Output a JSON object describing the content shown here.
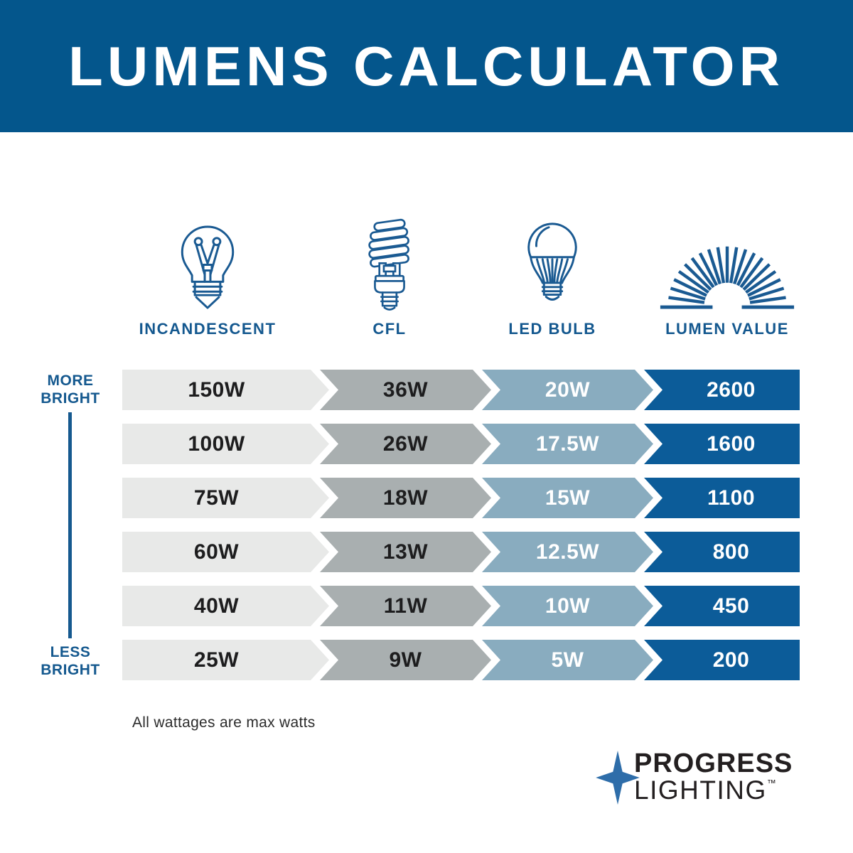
{
  "header": {
    "title": "LUMENS CALCULATOR"
  },
  "columns": [
    {
      "label": "INCANDESCENT",
      "icon": "incandescent-bulb-icon"
    },
    {
      "label": "CFL",
      "icon": "cfl-bulb-icon"
    },
    {
      "label": "LED BULB",
      "icon": "led-bulb-icon"
    },
    {
      "label": "LUMEN VALUE",
      "icon": "sunburst-icon"
    }
  ],
  "brightness_scale": {
    "top": "MORE BRIGHT",
    "bottom": "LESS BRIGHT"
  },
  "rows": [
    {
      "incandescent": "150W",
      "cfl": "36W",
      "led": "20W",
      "lumens": "2600"
    },
    {
      "incandescent": "100W",
      "cfl": "26W",
      "led": "17.5W",
      "lumens": "1600"
    },
    {
      "incandescent": "75W",
      "cfl": "18W",
      "led": "15W",
      "lumens": "1100"
    },
    {
      "incandescent": "60W",
      "cfl": "13W",
      "led": "12.5W",
      "lumens": "800"
    },
    {
      "incandescent": "40W",
      "cfl": "11W",
      "led": "10W",
      "lumens": "450"
    },
    {
      "incandescent": "25W",
      "cfl": "9W",
      "led": "5W",
      "lumens": "200"
    }
  ],
  "footnote": "All wattages are max watts",
  "brand": {
    "line1": "PROGRESS",
    "line2": "LIGHTING",
    "trademark": "™"
  },
  "colors": {
    "banner_blue": "#04568C",
    "lumen_value_blue": "#0C5C99",
    "led_blue": "#89ACBF",
    "cfl_gray": "#A9AFB0",
    "incandescent_gray": "#E8E9E8",
    "label_blue": "#15598F",
    "icon_stroke_blue": "#1A5A92",
    "logo_star_blue": "#2E6DA9",
    "logo_text": "#231F20"
  },
  "chart_data": {
    "type": "table",
    "title": "LUMENS CALCULATOR",
    "columns": [
      "INCANDESCENT",
      "CFL",
      "LED BULB",
      "LUMEN VALUE"
    ],
    "rows": [
      [
        "150W",
        "36W",
        "20W",
        "2600"
      ],
      [
        "100W",
        "26W",
        "17.5W",
        "1600"
      ],
      [
        "75W",
        "18W",
        "15W",
        "1100"
      ],
      [
        "60W",
        "13W",
        "12.5W",
        "800"
      ],
      [
        "40W",
        "11W",
        "10W",
        "450"
      ],
      [
        "25W",
        "9W",
        "5W",
        "200"
      ]
    ],
    "row_order_note": "rows sorted from MORE BRIGHT (top) to LESS BRIGHT (bottom)",
    "annotations": [
      "MORE BRIGHT",
      "LESS BRIGHT",
      "All wattages are max watts"
    ]
  }
}
